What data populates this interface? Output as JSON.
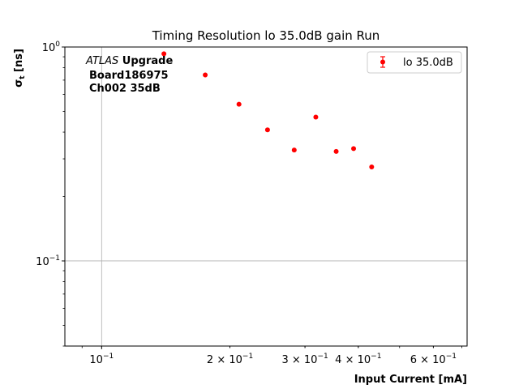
{
  "chart_data": {
    "type": "scatter",
    "title": "Timing Resolution lo 35.0dB gain Run",
    "xlabel": "Input Current [mA]",
    "ylabel": "σ_t [ns]",
    "ylabel_main": "σ",
    "ylabel_sub": "t",
    "ylabel_unit": " [ns]",
    "xscale": "log",
    "yscale": "log",
    "xlim": [
      0.082,
      0.72
    ],
    "ylim": [
      0.04,
      1.0
    ],
    "grid": true,
    "legend_position": "top-right",
    "marker_color": "#ff0000",
    "x_ticks": [
      {
        "value": 0.1,
        "mantissa": "10",
        "exponent": "−1"
      },
      {
        "value": 0.2,
        "mantissa": "2 × 10",
        "exponent": "−1"
      },
      {
        "value": 0.3,
        "mantissa": "3 × 10",
        "exponent": "−1"
      },
      {
        "value": 0.4,
        "mantissa": "4 × 10",
        "exponent": "−1"
      },
      {
        "value": 0.6,
        "mantissa": "6 × 10",
        "exponent": "−1"
      }
    ],
    "y_ticks": [
      {
        "value": 0.1,
        "mantissa": "10",
        "exponent": "−1"
      },
      {
        "value": 1.0,
        "mantissa": "10",
        "exponent": "0"
      }
    ],
    "series": [
      {
        "name": "lo 35.0dB",
        "x": [
          0.14,
          0.175,
          0.21,
          0.245,
          0.283,
          0.318,
          0.355,
          0.39,
          0.43
        ],
        "y": [
          0.93,
          0.74,
          0.54,
          0.41,
          0.33,
          0.47,
          0.325,
          0.335,
          0.275
        ]
      }
    ],
    "annotation": {
      "line1_italic": "ATLAS",
      "line1_bold": " Upgrade",
      "line2": "Board186975",
      "line3": "Ch002 35dB"
    }
  }
}
